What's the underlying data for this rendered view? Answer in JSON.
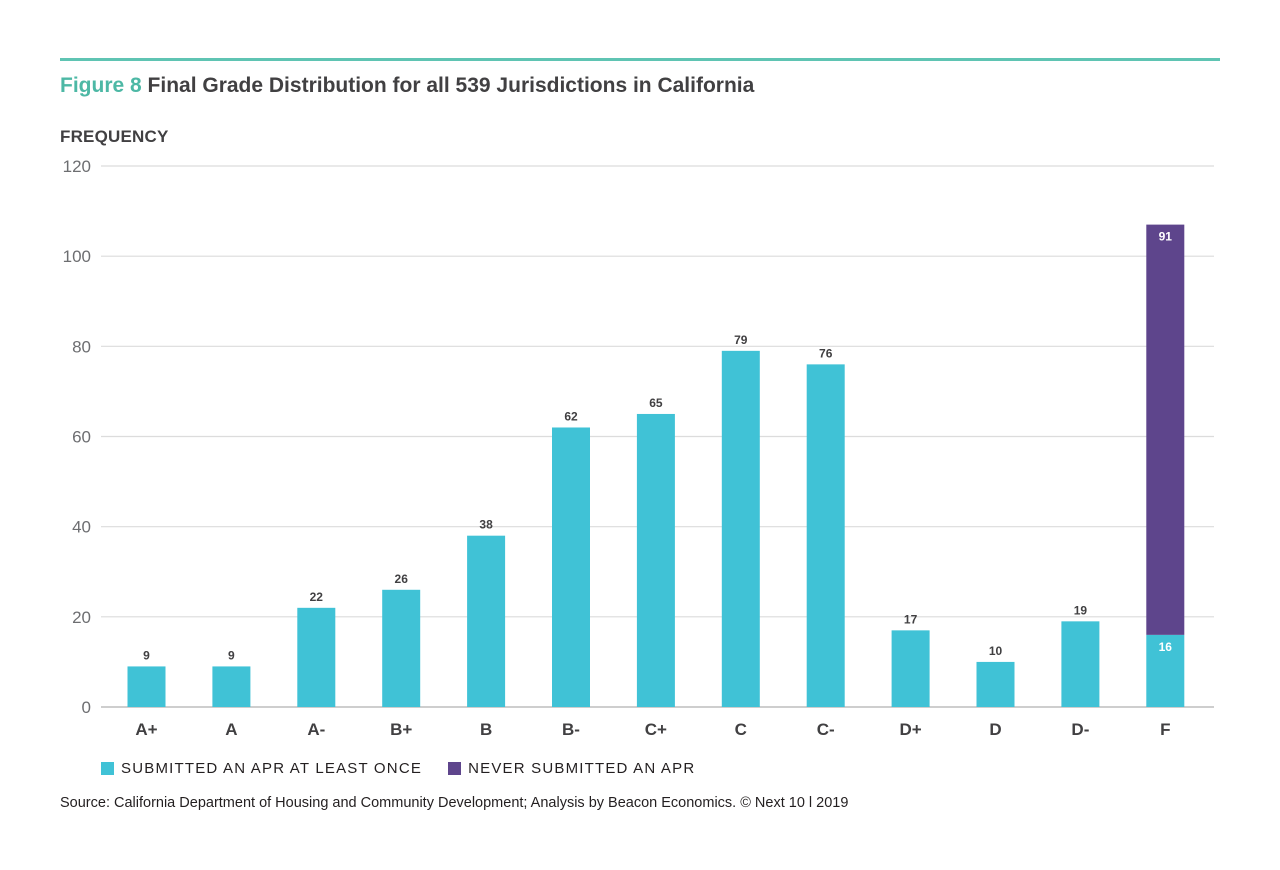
{
  "title": {
    "figure_label": "Figure 8",
    "text": "Final Grade Distribution for all 539 Jurisdictions in California"
  },
  "colors": {
    "accent": "#4db8a5",
    "submitted": "#40c2d6",
    "never": "#5e458c"
  },
  "chart_data": {
    "type": "bar",
    "stacked": true,
    "title": "Final Grade Distribution for all 539 Jurisdictions in California",
    "ylabel": "FREQUENCY",
    "xlabel": "",
    "ylim": [
      0,
      120
    ],
    "yticks": [
      0,
      20,
      40,
      60,
      80,
      100,
      120
    ],
    "grid": true,
    "legend_position": "bottom-left",
    "categories": [
      "A+",
      "A",
      "A-",
      "B+",
      "B",
      "B-",
      "C+",
      "C",
      "C-",
      "D+",
      "D",
      "D-",
      "F"
    ],
    "series": [
      {
        "name": "SUBMITTED AN APR AT LEAST ONCE",
        "color": "#40c2d6",
        "values": [
          9,
          9,
          22,
          26,
          38,
          62,
          65,
          79,
          76,
          17,
          10,
          19,
          16
        ]
      },
      {
        "name": "NEVER SUBMITTED AN APR",
        "color": "#5e458c",
        "values": [
          0,
          0,
          0,
          0,
          0,
          0,
          0,
          0,
          0,
          0,
          0,
          0,
          91
        ]
      }
    ]
  },
  "source": "Source: California Department of Housing and Community Development; Analysis by Beacon Economics. © Next 10 l 2019"
}
